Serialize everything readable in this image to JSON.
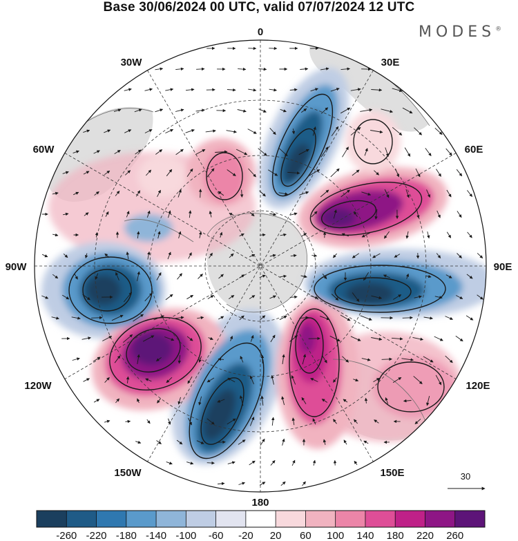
{
  "title": "Base 30/06/2024 00 UTC, valid 07/07/2024 12 UTC",
  "brand": "MODES",
  "brand_mark": "®",
  "longitude_labels": {
    "top": "0",
    "upper_left": "30W",
    "upper_right": "30E",
    "left_mid_upper": "60W",
    "right_mid_upper": "60E",
    "left": "90W",
    "right": "90E",
    "left_mid_lower": "120W",
    "right_mid_lower": "120E",
    "lower_left": "150W",
    "lower_right": "150E",
    "bottom": "180"
  },
  "vector_reference": "30",
  "colorbar": {
    "labels": [
      "-260",
      "-220",
      "-180",
      "-140",
      "-100",
      "-60",
      "-20",
      "20",
      "60",
      "100",
      "140",
      "180",
      "220",
      "260"
    ],
    "colors": [
      "#1b3f5e",
      "#1f5b87",
      "#2f78b0",
      "#5a9acb",
      "#8fb5d9",
      "#bfcde4",
      "#e2e4f0",
      "#ffffff",
      "#f8d9dd",
      "#f1b3c0",
      "#ec85a8",
      "#de4e97",
      "#bf2188",
      "#8e1685",
      "#5d1478"
    ]
  },
  "colors": {
    "land": "#dcdcdc",
    "contour": "#1a1a1a",
    "coast": "#6e6e6e"
  }
}
